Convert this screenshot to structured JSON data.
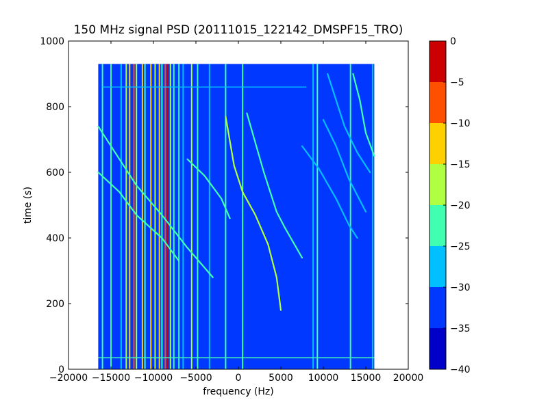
{
  "chart_data": {
    "type": "heatmap",
    "title": "150 MHz signal PSD (20111015_122142_DMSPF15_TRO)",
    "xlabel": "frequency (Hz)",
    "ylabel": "time (s)",
    "xlim": [
      -20000,
      20000
    ],
    "ylim": [
      0,
      1000
    ],
    "xticks": [
      -20000,
      -15000,
      -10000,
      -5000,
      0,
      5000,
      10000,
      15000,
      20000
    ],
    "xtick_labels": [
      "−20000",
      "−15000",
      "−10000",
      "−5000",
      "0",
      "5000",
      "10000",
      "15000",
      "20000"
    ],
    "yticks": [
      0,
      200,
      400,
      600,
      800,
      1000
    ],
    "ytick_labels": [
      "0",
      "200",
      "400",
      "600",
      "800",
      "1000"
    ],
    "data_extent": {
      "x": [
        -16500,
        16000
      ],
      "y": [
        0,
        930
      ]
    },
    "background_level": -32,
    "colorbar": {
      "levels": [
        -40,
        -35,
        -30,
        -25,
        -20,
        -15,
        -10,
        -5,
        0
      ],
      "tick_labels": [
        "−40",
        "−35",
        "−30",
        "−25",
        "−20",
        "−15",
        "−10",
        "−5",
        "0"
      ],
      "colors": [
        "#0000c8",
        "#0038ff",
        "#00c0ff",
        "#40ffb0",
        "#b0ff40",
        "#ffd000",
        "#ff5000",
        "#cc0000"
      ]
    },
    "vertical_lines": [
      {
        "freq": -16000,
        "level": -23
      },
      {
        "freq": -15000,
        "level": -25
      },
      {
        "freq": -13800,
        "level": -26
      },
      {
        "freq": -13200,
        "level": -18
      },
      {
        "freq": -12800,
        "level": -12
      },
      {
        "freq": -12300,
        "level": -8
      },
      {
        "freq": -12000,
        "level": -18
      },
      {
        "freq": -11300,
        "level": -15
      },
      {
        "freq": -11000,
        "level": -22
      },
      {
        "freq": -10300,
        "level": -12
      },
      {
        "freq": -9800,
        "level": -20
      },
      {
        "freq": -9300,
        "level": -13
      },
      {
        "freq": -9000,
        "level": -22
      },
      {
        "freq": -8600,
        "level": -10
      },
      {
        "freq": -8300,
        "level": -4
      },
      {
        "freq": -8000,
        "level": -16
      },
      {
        "freq": -7600,
        "level": -22
      },
      {
        "freq": -7000,
        "level": -24
      },
      {
        "freq": -6500,
        "level": -26
      },
      {
        "freq": -5500,
        "level": -18
      },
      {
        "freq": -4800,
        "level": -24
      },
      {
        "freq": -3400,
        "level": -26
      },
      {
        "freq": -1500,
        "level": -24
      },
      {
        "freq": 500,
        "level": -22
      },
      {
        "freq": 8800,
        "level": -26
      },
      {
        "freq": 9300,
        "level": -24
      },
      {
        "freq": 13200,
        "level": -24
      },
      {
        "freq": 15800,
        "level": -26
      }
    ],
    "horizontal_lines": [
      {
        "time": 860,
        "freq_range": [
          -16000,
          8000
        ],
        "level": -26
      },
      {
        "time": 35,
        "freq_range": [
          -16500,
          16000
        ],
        "level": -25
      }
    ],
    "sweep_tracks": [
      {
        "points": [
          [
            -1500,
            770
          ],
          [
            -500,
            620
          ],
          [
            500,
            540
          ],
          [
            2000,
            470
          ],
          [
            3500,
            380
          ],
          [
            4500,
            280
          ],
          [
            5000,
            180
          ]
        ],
        "level": -16
      },
      {
        "points": [
          [
            1000,
            780
          ],
          [
            3000,
            600
          ],
          [
            4500,
            480
          ],
          [
            5500,
            430
          ],
          [
            7500,
            340
          ]
        ],
        "level": -25
      },
      {
        "points": [
          [
            -16500,
            740
          ],
          [
            -14000,
            640
          ],
          [
            -12000,
            560
          ],
          [
            -9000,
            470
          ],
          [
            -6000,
            370
          ],
          [
            -3000,
            280
          ]
        ],
        "level": -25
      },
      {
        "points": [
          [
            -16500,
            600
          ],
          [
            -14000,
            540
          ],
          [
            -12000,
            470
          ],
          [
            -9000,
            400
          ],
          [
            -7000,
            330
          ]
        ],
        "level": -22
      },
      {
        "points": [
          [
            -6000,
            640
          ],
          [
            -4000,
            590
          ],
          [
            -2000,
            520
          ],
          [
            -1000,
            460
          ]
        ],
        "level": -24
      },
      {
        "points": [
          [
            10500,
            900
          ],
          [
            11500,
            820
          ],
          [
            12500,
            740
          ],
          [
            14000,
            660
          ],
          [
            15500,
            600
          ]
        ],
        "level": -26
      },
      {
        "points": [
          [
            13500,
            900
          ],
          [
            14300,
            820
          ],
          [
            15000,
            720
          ],
          [
            16000,
            650
          ]
        ],
        "level": -24
      },
      {
        "points": [
          [
            10000,
            760
          ],
          [
            11500,
            680
          ],
          [
            13000,
            580
          ],
          [
            15000,
            480
          ]
        ],
        "level": -26
      },
      {
        "points": [
          [
            7500,
            680
          ],
          [
            9500,
            610
          ],
          [
            11500,
            520
          ],
          [
            13000,
            440
          ],
          [
            14000,
            400
          ]
        ],
        "level": -27
      }
    ]
  }
}
